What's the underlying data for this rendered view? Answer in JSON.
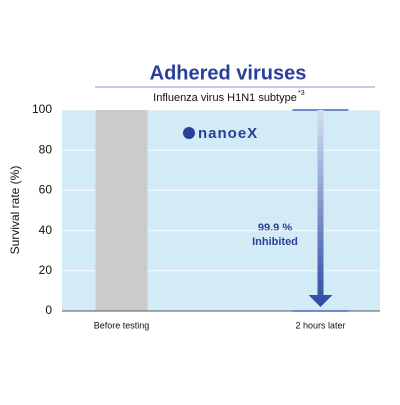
{
  "chart_data": {
    "type": "bar",
    "title": "Adhered viruses",
    "subtitle": "Influenza virus H1N1 subtype",
    "subtitle_note": "*3",
    "ylabel": "Survival rate (%)",
    "categories": [
      "Before testing",
      "2 hours later"
    ],
    "values": [
      100,
      0
    ],
    "color": "#cbcbcb",
    "ylim": [
      0,
      100
    ],
    "yticks": [
      0,
      20,
      40,
      60,
      80,
      100
    ],
    "grid": true,
    "brand": "nanoeX",
    "annotations": [
      "99.9 %",
      "Inhibited"
    ]
  }
}
